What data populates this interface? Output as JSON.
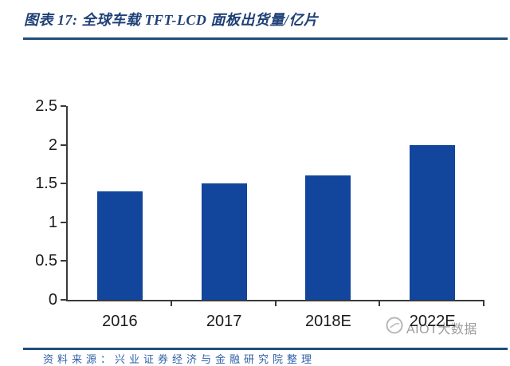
{
  "page": {
    "title": "图表 17:  全球车载 TFT-LCD 面板出货量/亿片",
    "footer_source": "资料来源：兴业证券经济与金融研究院整理",
    "rule_color": "#1f4e79"
  },
  "watermark": {
    "text": "AIOT大数据",
    "color": "#9b9b9b"
  },
  "chart_data": {
    "type": "bar",
    "title": "全球车载 TFT-LCD 面板出货量/亿片",
    "categories": [
      "2016",
      "2017",
      "2018E",
      "2022E"
    ],
    "values": [
      1.4,
      1.5,
      1.6,
      2.0
    ],
    "xlabel": "",
    "ylabel": "",
    "unit": "亿片",
    "ylim": [
      0,
      2.5
    ],
    "yticks": [
      0,
      0.5,
      1,
      1.5,
      2,
      2.5
    ],
    "grid": false,
    "legend": "none",
    "bar_color": "#12459c",
    "axis_color": "#3a3a3a",
    "tick_label_color": "#1a1a1a"
  }
}
